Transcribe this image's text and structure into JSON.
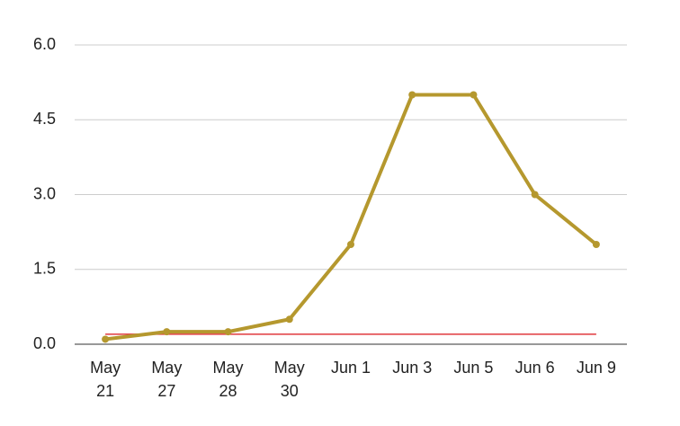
{
  "chart_data": {
    "type": "line",
    "categories": [
      "May 21",
      "May 27",
      "May 28",
      "May 30",
      "Jun 1",
      "Jun 3",
      "Jun 5",
      "Jun 6",
      "Jun 9"
    ],
    "series": [
      {
        "color": "#b5982e",
        "values": [
          0.1,
          0.25,
          0.25,
          0.5,
          2,
          5,
          5,
          3,
          2
        ]
      },
      {
        "color": "#e0393e",
        "values": [
          0.2,
          0.2,
          0.2,
          0.2,
          0.2,
          0.2,
          0.2,
          0.2,
          0.2
        ]
      }
    ],
    "ylim": [
      0,
      6
    ],
    "yticks": [
      {
        "value": 0,
        "label": "0.0"
      },
      {
        "value": 1.5,
        "label": "1.5"
      },
      {
        "value": 3,
        "label": "3.0"
      },
      {
        "value": 4.5,
        "label": "4.5"
      },
      {
        "value": 6,
        "label": "6.0"
      }
    ],
    "grid": true
  }
}
